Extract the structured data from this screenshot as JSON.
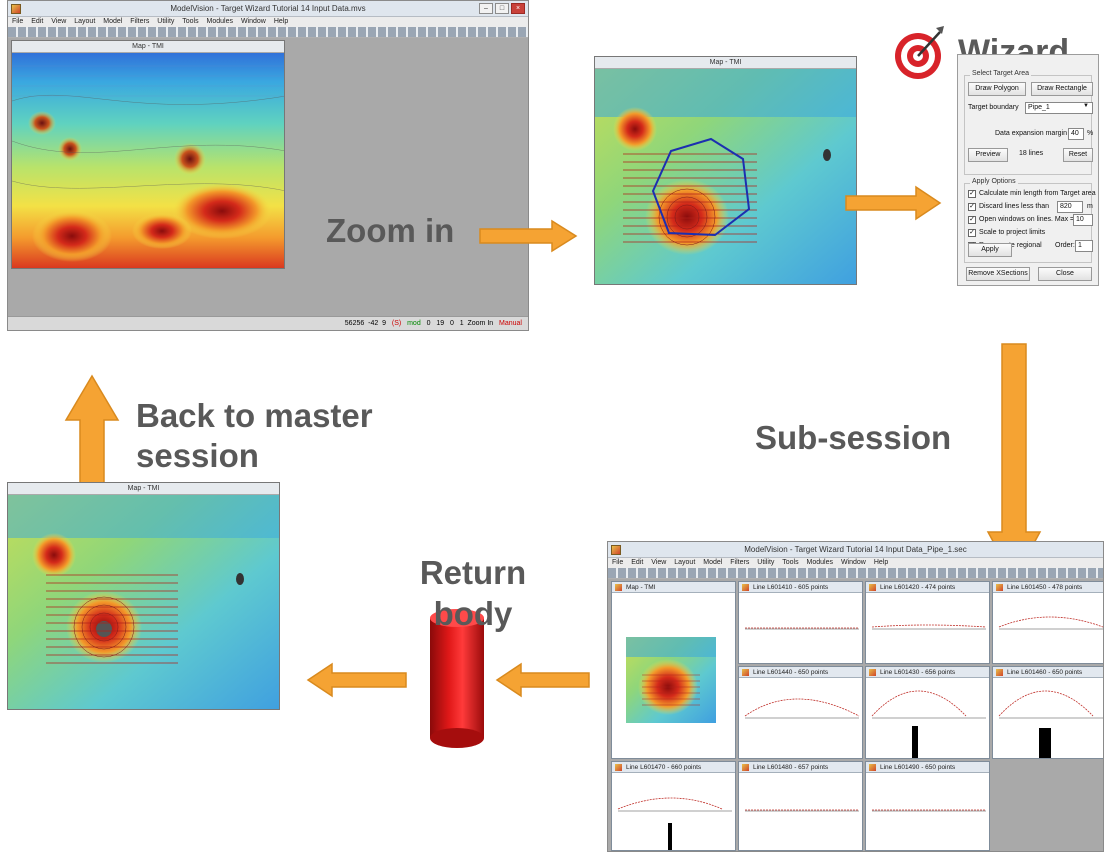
{
  "labels": {
    "zoom_in": "Zoom in",
    "back_to_master": "Back to master session",
    "sub_session": "Sub-session",
    "return_body": "Return body",
    "wizard": "Wizard"
  },
  "master_window": {
    "title": "ModelVision - Target Wizard Tutorial 14 Input Data.mvs",
    "menu": [
      "File",
      "Edit",
      "View",
      "Layout",
      "Model",
      "Filters",
      "Utility",
      "Tools",
      "Modules",
      "Window",
      "Help"
    ],
    "map_title": "Map - TMI",
    "status": [
      "56256",
      "-42",
      "9",
      "(S)",
      "mod",
      "0",
      "19",
      "0",
      "1",
      "Zoom In",
      "Manual"
    ]
  },
  "zoom_window": {
    "title": "Map - TMI"
  },
  "wizard_dialog": {
    "title": "Target Wizard",
    "select_group": "Select Target Area",
    "draw_polygon": "Draw Polygon",
    "draw_rectangle": "Draw Rectangle",
    "target_boundary_label": "Target boundary",
    "target_boundary_value": "Pipe_1",
    "data_margin_label": "Data expansion margin",
    "data_margin_value": "40",
    "data_margin_unit": "%",
    "preview": "Preview",
    "lines_count": "18 lines",
    "reset": "Reset",
    "apply_group": "Apply Options",
    "opt_min_length": "Calculate min length from Target area",
    "opt_discard": "Discard lines less than",
    "opt_discard_value": "820",
    "opt_discard_unit": "m",
    "opt_open_windows": "Open windows on lines. Max =",
    "opt_open_windows_value": "10",
    "opt_scale": "Scale to project limits",
    "opt_regional": "Recompute regional",
    "order_label": "Order:",
    "order_value": "1",
    "apply": "Apply",
    "remove_xsections": "Remove XSections",
    "close": "Close"
  },
  "sub_session": {
    "title": "ModelVision - Target Wizard Tutorial 14 Input Data_Pipe_1.sec",
    "menu": [
      "File",
      "Edit",
      "View",
      "Layout",
      "Model",
      "Filters",
      "Utility",
      "Tools",
      "Modules",
      "Window",
      "Help"
    ],
    "map_title": "Map - TMI",
    "panels": [
      "Line L601410 - 605 points",
      "Line L601420 - 474 points",
      "Line L601450 - 478 points",
      "Line L601440 - 650 points",
      "Line L601430 - 656 points",
      "Line L601460 - 650 points",
      "Line L601470 - 660 points",
      "Line L601480 - 657 points",
      "Line L601490 - 650 points"
    ]
  },
  "return_window": {
    "title": "Map - TMI"
  },
  "colors": {
    "arrow": "#f5a333",
    "arrow_border": "#d98a1e",
    "label_text": "#595959",
    "body_red": "#d71a1a"
  }
}
